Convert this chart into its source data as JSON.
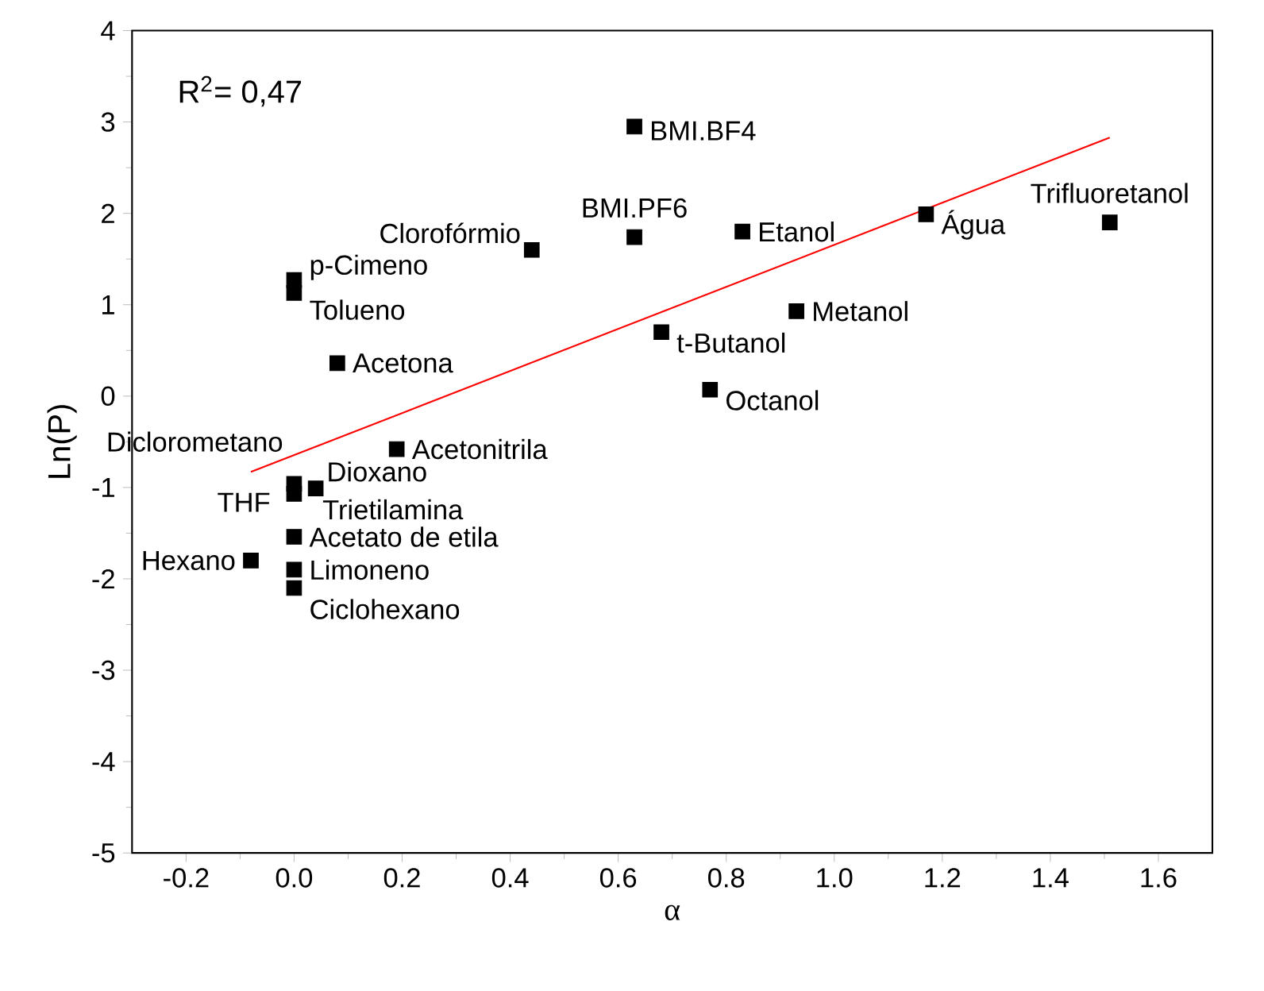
{
  "chart_data": {
    "type": "scatter",
    "xlabel": "α",
    "ylabel": "Ln(P)",
    "xlim": [
      -0.3,
      1.7
    ],
    "xticks": [
      -0.2,
      {
        "value": 0.0,
        "label": "0.0"
      },
      0.2,
      0.4,
      0.6,
      0.8,
      {
        "value": 1.0,
        "label": "1.0"
      },
      1.2,
      1.4,
      1.6
    ],
    "ylim": [
      -5,
      4
    ],
    "yticks": [
      -5,
      -4,
      -3,
      -2,
      -1,
      0,
      1,
      2,
      3,
      4
    ],
    "grid": false,
    "annotations": [
      "R$^{2}$= 0,47",
      {
        "text": "Hexano",
        "x": -0.08,
        "y": -1.8
      },
      {
        "text": "Diclorometano",
        "x": 0.0,
        "y": -0.96
      },
      {
        "text": "THF",
        "x": 0.0,
        "y": -1.07
      },
      {
        "text": "Dioxano",
        "x": 0.04,
        "y": -1.01
      },
      {
        "text": "Trietilamina",
        "x": 0.04,
        "y": -1.01
      },
      {
        "text": "Acetato de etila",
        "x": 0.0,
        "y": -1.54
      },
      {
        "text": "Limoneno",
        "x": 0.0,
        "y": -1.9
      },
      {
        "text": "Ciclohexano",
        "x": 0.0,
        "y": -2.1
      },
      {
        "text": "p-Cimeno",
        "x": 0.0,
        "y": 1.27
      },
      {
        "text": "Tolueno",
        "x": 0.0,
        "y": 1.13
      },
      {
        "text": "Acetona",
        "x": 0.08,
        "y": 0.36
      },
      {
        "text": "Acetonitrila",
        "x": 0.19,
        "y": -0.58
      },
      {
        "text": "Clorofórmio",
        "x": 0.44,
        "y": 1.6
      },
      {
        "text": "BMI.PF6",
        "x": 0.63,
        "y": 1.74
      },
      {
        "text": "BMI.BF4",
        "x": 0.63,
        "y": 2.95
      },
      {
        "text": "Etanol",
        "x": 0.83,
        "y": 1.8
      },
      {
        "text": "t-Butanol",
        "x": 0.68,
        "y": 0.7
      },
      {
        "text": "Octanol",
        "x": 0.77,
        "y": 0.07
      },
      {
        "text": "Metanol",
        "x": 0.93,
        "y": 0.93
      },
      {
        "text": "Água",
        "x": 1.17,
        "y": 1.99
      },
      {
        "text": "Trifluoretanol",
        "x": 1.51,
        "y": 1.9
      }
    ],
    "series": [
      {
        "color": "#000000",
        "marker": "square",
        "x": [
          -0.08,
          0.0,
          0.0,
          0.04,
          0.0,
          0.0,
          0.0,
          0.0,
          0.0,
          0.08,
          0.19,
          0.44,
          0.63,
          0.63,
          0.83,
          0.68,
          0.77,
          0.93,
          1.17,
          1.51
        ],
        "values": [
          -1.8,
          -0.96,
          -1.07,
          -1.01,
          -1.54,
          -1.9,
          -2.1,
          1.27,
          1.13,
          0.36,
          -0.58,
          1.6,
          1.74,
          2.95,
          1.8,
          0.7,
          0.07,
          0.93,
          1.99,
          1.9
        ]
      },
      {
        "type": "line",
        "color": "#ff0000",
        "x": [
          -0.08,
          1.51
        ],
        "values": [
          -0.83,
          2.83
        ]
      }
    ]
  }
}
